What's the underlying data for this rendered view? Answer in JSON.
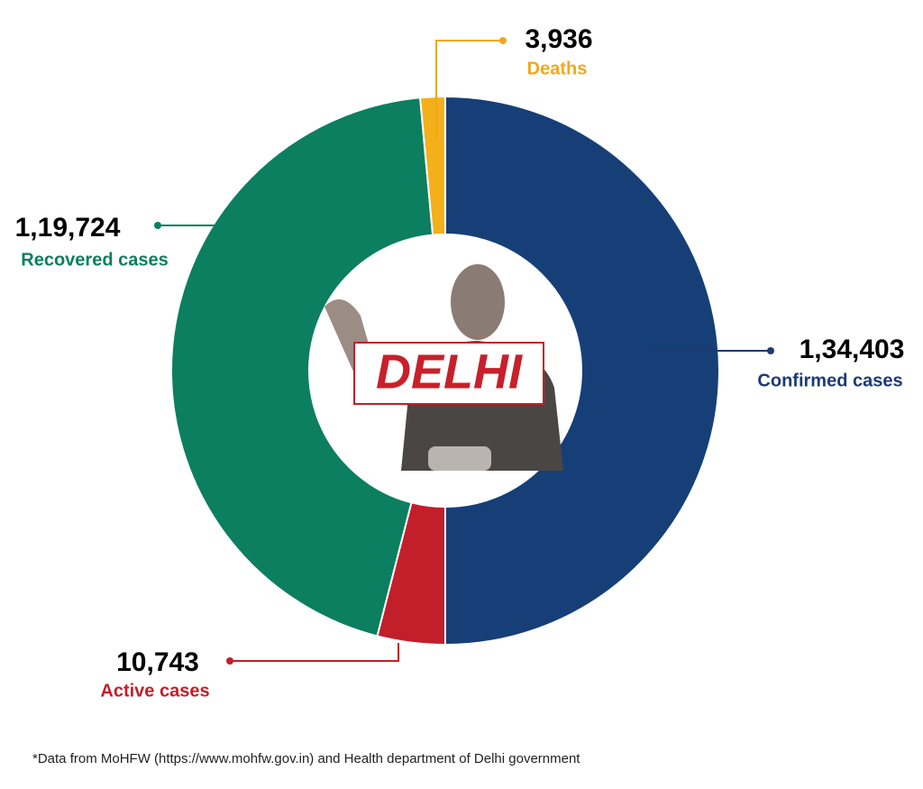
{
  "chart_data": {
    "type": "pie",
    "donut": true,
    "categories": [
      "Confirmed cases",
      "Active cases",
      "Recovered cases",
      "Deaths"
    ],
    "values": [
      134403,
      10743,
      119724,
      3936
    ],
    "value_labels": [
      "1,34,403",
      "10,743",
      "1,19,724",
      "3,936"
    ],
    "colors": [
      "#163f78",
      "#c21f2a",
      "#0b7f5f",
      "#f3b019"
    ],
    "label_colors": [
      "#1c3b72",
      "#c21f2a",
      "#0b7f5f",
      "#f0a91e"
    ],
    "center_text": "DELHI",
    "footnote": "*Data from MoHFW (https://www.mohfw.gov.in) and Health department of Delhi government"
  }
}
